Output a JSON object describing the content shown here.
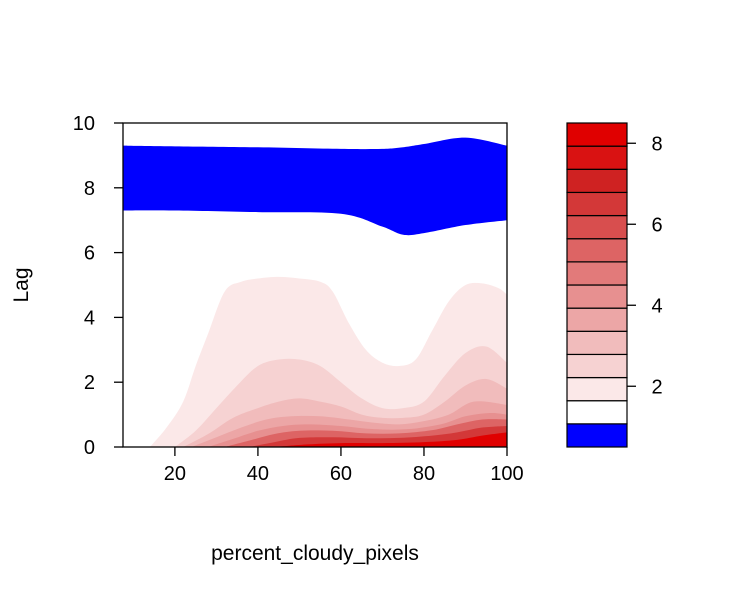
{
  "chart_data": {
    "type": "heatmap",
    "title": "",
    "xlabel": "percent_cloudy_pixels",
    "ylabel": "Lag",
    "xlim": [
      7.5,
      100
    ],
    "ylim": [
      0,
      10
    ],
    "x_ticks": [
      20,
      40,
      60,
      80,
      100
    ],
    "y_ticks": [
      0,
      2,
      4,
      6,
      8,
      10
    ],
    "grid": false,
    "legend": {
      "position": "right",
      "type": "colorbar",
      "range": [
        0.5,
        8.5
      ],
      "ticks": [
        2,
        4,
        6,
        8
      ],
      "colors": [
        "#0000ff",
        "#ffffff",
        "#fbe8e8",
        "#f6d2d2",
        "#f1bcbc",
        "#eca6a6",
        "#e79090",
        "#e27a7a",
        "#dd6464",
        "#d84e4e",
        "#d33838",
        "#cf2222",
        "#d91212",
        "#e00000"
      ]
    },
    "regions": [
      {
        "level": "negative",
        "color": "#0000ff",
        "x": [
          7.5,
          20,
          40,
          60,
          70,
          75,
          80,
          90,
          100
        ],
        "y_low": [
          7.3,
          7.3,
          7.25,
          7.2,
          6.8,
          6.55,
          6.6,
          6.85,
          7.0
        ],
        "y_high": [
          9.3,
          9.28,
          9.25,
          9.2,
          9.2,
          9.25,
          9.35,
          9.55,
          9.3
        ]
      },
      {
        "level": 1,
        "color": "#fbe8e8",
        "x": [
          14,
          18,
          22,
          25,
          28,
          32,
          36,
          40,
          45,
          50,
          55,
          58,
          62,
          66,
          70,
          74,
          78,
          82,
          86,
          90,
          94,
          98,
          100
        ],
        "y": [
          0,
          0.6,
          1.4,
          2.5,
          3.5,
          4.8,
          5.1,
          5.2,
          5.25,
          5.2,
          5.1,
          4.8,
          3.8,
          3.0,
          2.6,
          2.5,
          2.7,
          3.6,
          4.5,
          5.0,
          5.05,
          4.9,
          4.7
        ]
      },
      {
        "level": 2,
        "color": "#f6d2d2",
        "x": [
          20,
          25,
          30,
          35,
          40,
          45,
          50,
          55,
          60,
          65,
          70,
          75,
          80,
          85,
          90,
          95,
          100
        ],
        "y": [
          0,
          0.5,
          1.2,
          1.9,
          2.5,
          2.7,
          2.7,
          2.5,
          2.0,
          1.5,
          1.2,
          1.2,
          1.4,
          2.2,
          2.9,
          3.1,
          2.6
        ]
      },
      {
        "level": 3,
        "color": "#f1bcbc",
        "x": [
          22,
          28,
          34,
          40,
          45,
          50,
          55,
          60,
          65,
          70,
          75,
          80,
          85,
          90,
          95,
          100
        ],
        "y": [
          0,
          0.4,
          0.9,
          1.2,
          1.4,
          1.5,
          1.4,
          1.25,
          1.0,
          0.9,
          0.9,
          1.0,
          1.4,
          1.9,
          2.1,
          1.8
        ]
      },
      {
        "level": 4,
        "color": "#eca6a6",
        "x": [
          24,
          30,
          36,
          42,
          48,
          55,
          62,
          68,
          74,
          80,
          86,
          92,
          100
        ],
        "y": [
          0,
          0.3,
          0.6,
          0.85,
          0.95,
          0.95,
          0.85,
          0.75,
          0.7,
          0.8,
          1.0,
          1.4,
          1.3
        ]
      },
      {
        "level": 5,
        "color": "#e79090",
        "x": [
          28,
          34,
          40,
          46,
          52,
          60,
          68,
          76,
          84,
          90,
          96,
          100
        ],
        "y": [
          0,
          0.25,
          0.5,
          0.65,
          0.7,
          0.65,
          0.55,
          0.55,
          0.7,
          0.95,
          1.05,
          1.0
        ]
      },
      {
        "level": 6,
        "color": "#dd6464",
        "x": [
          32,
          38,
          44,
          50,
          58,
          66,
          74,
          82,
          88,
          94,
          100
        ],
        "y": [
          0,
          0.2,
          0.4,
          0.5,
          0.5,
          0.42,
          0.42,
          0.52,
          0.7,
          0.85,
          0.85
        ]
      },
      {
        "level": 7,
        "color": "#d33838",
        "x": [
          38,
          44,
          50,
          58,
          66,
          74,
          82,
          88,
          94,
          100
        ],
        "y": [
          0,
          0.15,
          0.28,
          0.3,
          0.27,
          0.28,
          0.35,
          0.45,
          0.6,
          0.65
        ]
      },
      {
        "level": 8,
        "color": "#e00000",
        "x": [
          44,
          52,
          60,
          70,
          80,
          88,
          94,
          100
        ],
        "y": [
          0,
          0.08,
          0.12,
          0.12,
          0.15,
          0.22,
          0.35,
          0.45
        ]
      }
    ]
  }
}
